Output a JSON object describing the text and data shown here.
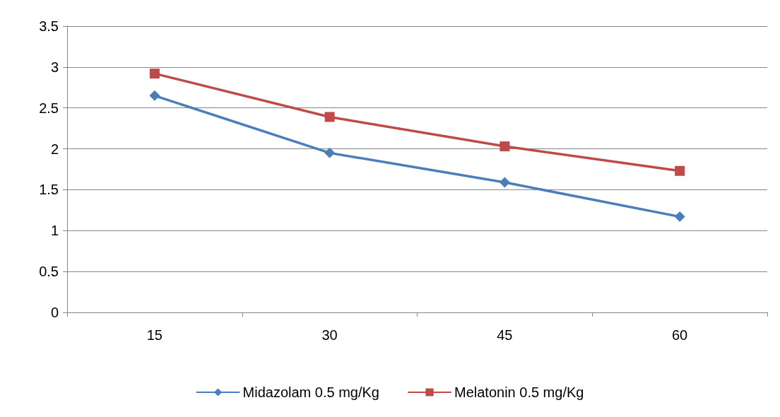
{
  "chart_data": {
    "type": "line",
    "categories": [
      "15",
      "30",
      "45",
      "60"
    ],
    "series": [
      {
        "name": "Midazolam 0.5 mg/Kg",
        "color": "#4a7ebb",
        "marker": "diamond",
        "values": [
          2.65,
          1.95,
          1.59,
          1.17
        ]
      },
      {
        "name": "Melatonin 0.5 mg/Kg",
        "color": "#be4b48",
        "marker": "square",
        "values": [
          2.92,
          2.39,
          2.03,
          1.73
        ]
      }
    ],
    "ylim": [
      0,
      3.5
    ],
    "yticks": [
      0,
      0.5,
      1,
      1.5,
      2,
      2.5,
      3,
      3.5
    ],
    "grid": "y",
    "legend": "bottom",
    "line_style": "solid"
  }
}
